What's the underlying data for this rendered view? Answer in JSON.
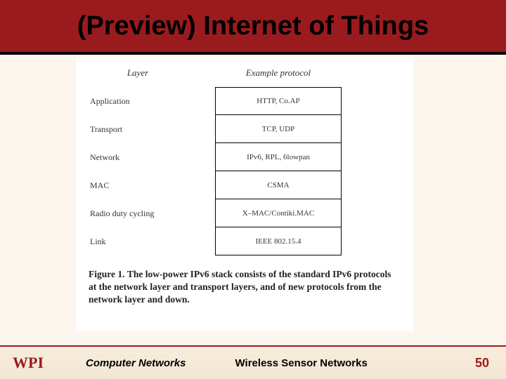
{
  "title": "(Preview) Internet of Things",
  "diagram": {
    "header_left": "Layer",
    "header_right": "Example protocol",
    "rows": [
      {
        "layer": "Application",
        "protocol": "HTTP, Co.AP"
      },
      {
        "layer": "Transport",
        "protocol": "TCP, UDP"
      },
      {
        "layer": "Network",
        "protocol": "IPv6, RPL, 6lowpan"
      },
      {
        "layer": "MAC",
        "protocol": "CSMA"
      },
      {
        "layer": "Radio duty cycling",
        "protocol": "X–MAC/Contiki.MAC"
      },
      {
        "layer": "Link",
        "protocol": "IEEE 802.15.4"
      }
    ],
    "box_border_color": "#000000",
    "box_bg_color": "#ffffff",
    "font_family": "Times New Roman",
    "label_fontsize": 12,
    "protocol_fontsize": 11
  },
  "caption": {
    "label": "Figure 1.",
    "text": "The low-power IPv6 stack consists of the standard IPv6 protocols at the network layer and transport layers, and of new protocols from the network layer and down.",
    "fontsize": 13.5,
    "font_family": "Times New Roman"
  },
  "footer": {
    "logo_text": "WPI",
    "left": "Computer Networks",
    "center": "Wireless Sensor Networks",
    "page": "50",
    "accent_color": "#9a1b1e"
  },
  "colors": {
    "slide_bg": "#fdf6ee",
    "title_bg": "#9a1b1e",
    "title_underline": "#000000",
    "content_bg": "#ffffff",
    "footer_border": "#9a1b1e"
  }
}
